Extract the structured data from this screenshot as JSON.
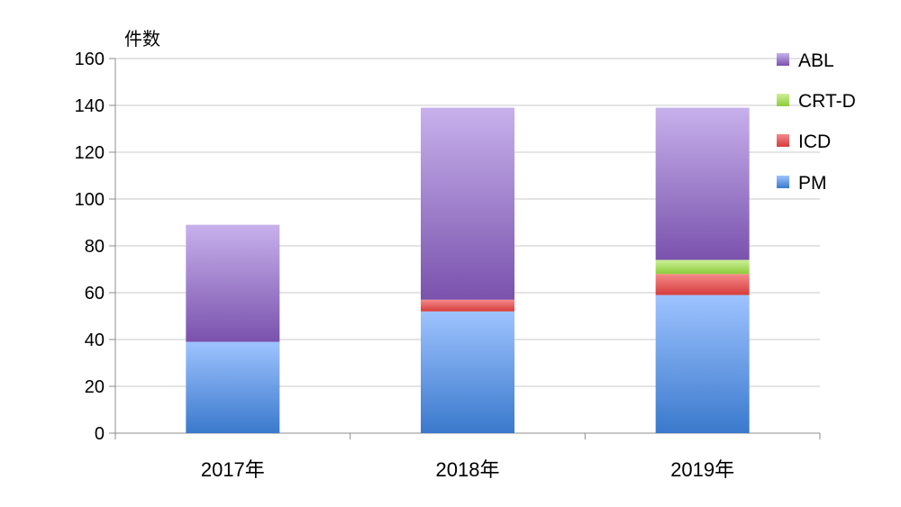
{
  "chart_data": {
    "type": "bar",
    "stacked": true,
    "ylabel": "件数",
    "ylim": [
      0,
      160
    ],
    "yticks": [
      0,
      20,
      40,
      60,
      80,
      100,
      120,
      140,
      160
    ],
    "categories": [
      "2017年",
      "2018年",
      "2019年"
    ],
    "series": [
      {
        "name": "PM",
        "values": [
          39,
          52,
          59
        ],
        "color_top": "#9ec3ff",
        "color_bottom": "#3a79cc"
      },
      {
        "name": "ICD",
        "values": [
          0,
          5,
          9
        ],
        "color_top": "#f58a8a",
        "color_bottom": "#d63c3c"
      },
      {
        "name": "CRT-D",
        "values": [
          0,
          0,
          6
        ],
        "color_top": "#cdf09a",
        "color_bottom": "#8ccc3a"
      },
      {
        "name": "ABL",
        "values": [
          50,
          82,
          65
        ],
        "color_top": "#c7b1ec",
        "color_bottom": "#7a52ad"
      }
    ],
    "legend_order": [
      "ABL",
      "CRT-D",
      "ICD",
      "PM"
    ],
    "legend_position": "right",
    "grid": true
  }
}
